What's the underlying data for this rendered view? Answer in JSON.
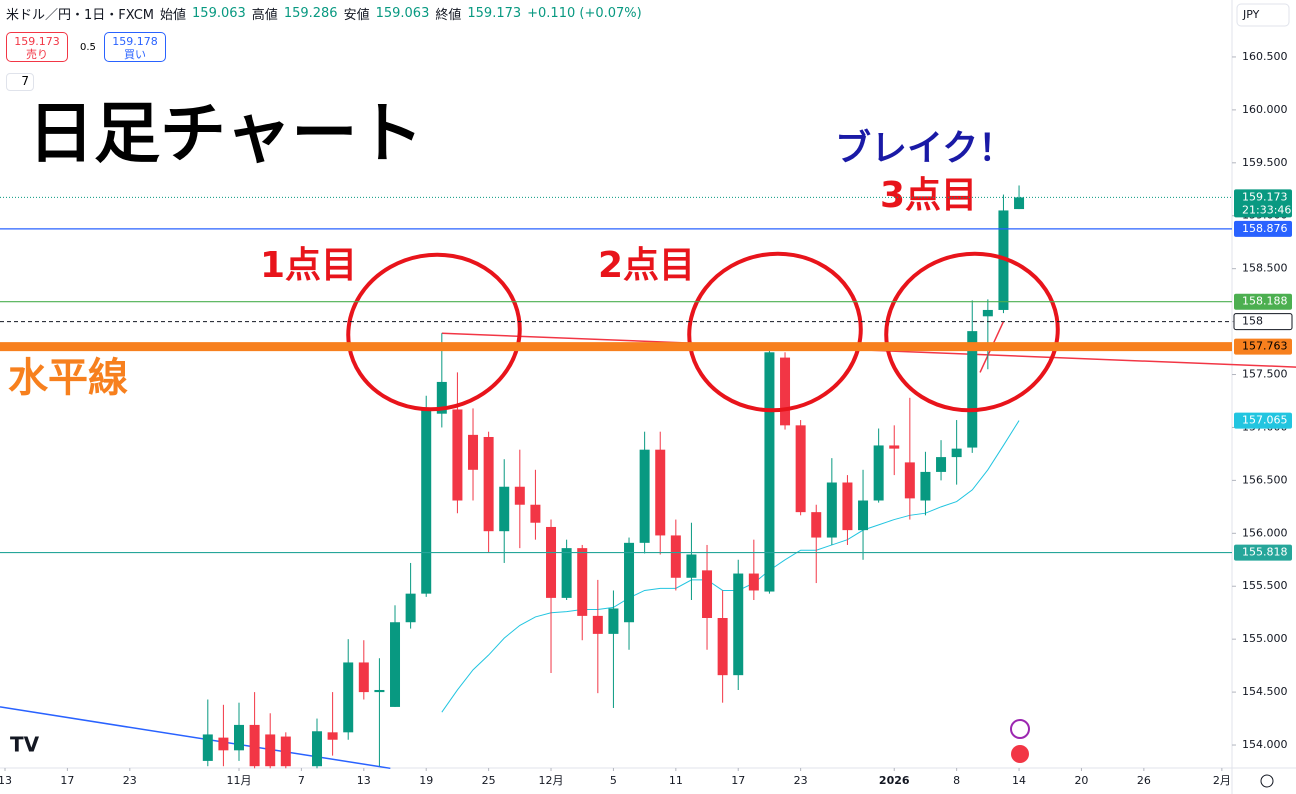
{
  "header": {
    "symbol": "米ドル／円・1日・FXCM",
    "open_label": "始値",
    "open": "159.063",
    "high_label": "高値",
    "high": "159.286",
    "low_label": "安値",
    "low": "159.063",
    "close_label": "終値",
    "close": "159.173",
    "change": "+0.110 (+0.07%)",
    "sell_price": "159.173",
    "sell_label": "売り",
    "spread": "0.5",
    "buy_price": "159.178",
    "buy_label": "買い",
    "indicator_count": "7",
    "currency": "JPY"
  },
  "chart_data": {
    "type": "candlestick",
    "up_color": "#089981",
    "down_color": "#f23645",
    "x": [
      13,
      14,
      15,
      16,
      17,
      18,
      20,
      21,
      22,
      23,
      24,
      25,
      26,
      27,
      28,
      29,
      30,
      31,
      32,
      33,
      34,
      35,
      36,
      37,
      38,
      39,
      40,
      41,
      42,
      43,
      44,
      45,
      46,
      47,
      48,
      49,
      50,
      51,
      52,
      53,
      54,
      55,
      56,
      57,
      58,
      59,
      60,
      61,
      62,
      63,
      64,
      65
    ],
    "open": [
      153.85,
      154.07,
      153.95,
      154.19,
      154.1,
      154.08,
      153.8,
      154.12,
      154.12,
      154.78,
      154.5,
      154.36,
      155.16,
      155.43,
      157.13,
      157.17,
      156.93,
      156.91,
      156.02,
      156.44,
      156.27,
      156.06,
      155.39,
      155.86,
      155.22,
      155.05,
      155.16,
      155.91,
      156.79,
      155.98,
      155.58,
      155.65,
      155.2,
      154.66,
      155.62,
      155.45,
      157.66,
      157.02,
      156.2,
      155.96,
      156.48,
      156.03,
      156.31,
      156.83,
      156.67,
      156.31,
      156.58,
      156.72,
      156.81,
      158.05,
      158.11,
      159.063
    ],
    "high": [
      154.43,
      154.38,
      154.4,
      154.5,
      154.3,
      154.12,
      154.25,
      154.5,
      155.0,
      154.99,
      154.82,
      155.32,
      155.72,
      157.3,
      157.89,
      157.52,
      157.18,
      156.96,
      156.7,
      156.79,
      156.6,
      156.13,
      155.94,
      155.89,
      155.56,
      155.46,
      155.96,
      156.96,
      156.96,
      156.13,
      156.1,
      155.89,
      155.46,
      155.75,
      155.94,
      157.73,
      157.71,
      157.07,
      156.27,
      156.71,
      156.55,
      156.6,
      156.99,
      157.02,
      157.28,
      156.77,
      156.88,
      157.07,
      158.2,
      158.21,
      159.2,
      159.286
    ],
    "low": [
      153.8,
      153.8,
      153.85,
      153.78,
      153.78,
      153.78,
      153.78,
      153.9,
      154.05,
      154.43,
      153.8,
      154.36,
      155.1,
      155.4,
      157.0,
      156.19,
      156.31,
      155.82,
      155.72,
      155.86,
      155.94,
      154.68,
      155.37,
      154.99,
      154.49,
      154.35,
      154.9,
      155.81,
      155.8,
      155.46,
      155.37,
      154.9,
      154.4,
      154.52,
      155.37,
      155.43,
      156.98,
      156.17,
      155.53,
      155.89,
      155.89,
      155.75,
      156.29,
      156.55,
      156.13,
      156.17,
      156.5,
      156.46,
      156.76,
      157.55,
      158.08,
      159.063
    ],
    "close": [
      154.1,
      153.95,
      154.19,
      153.8,
      153.8,
      153.8,
      154.13,
      154.05,
      154.78,
      154.5,
      154.52,
      155.16,
      155.43,
      157.17,
      157.43,
      156.31,
      156.6,
      156.02,
      156.44,
      156.27,
      156.1,
      155.39,
      155.86,
      155.22,
      155.05,
      155.29,
      155.91,
      156.79,
      155.98,
      155.58,
      155.8,
      155.2,
      154.66,
      155.62,
      155.46,
      157.71,
      157.02,
      156.2,
      155.96,
      156.48,
      156.03,
      156.31,
      156.83,
      156.8,
      156.33,
      156.58,
      156.72,
      156.8,
      157.91,
      158.11,
      159.05,
      159.173
    ],
    "ma": {
      "color": "#22c5e0",
      "x": [
        28,
        29,
        30,
        31,
        32,
        33,
        34,
        35,
        36,
        37,
        38,
        39,
        40,
        41,
        42,
        43,
        44,
        45,
        46,
        47,
        48,
        49,
        50,
        51,
        52,
        53,
        54,
        55,
        56,
        57,
        58,
        59,
        60,
        61,
        62,
        63,
        64,
        65
      ],
      "values": [
        154.31,
        154.52,
        154.71,
        154.85,
        155.01,
        155.13,
        155.21,
        155.25,
        155.26,
        155.28,
        155.28,
        155.3,
        155.39,
        155.46,
        155.48,
        155.48,
        155.56,
        155.56,
        155.46,
        155.46,
        155.53,
        155.65,
        155.75,
        155.84,
        155.84,
        155.89,
        155.94,
        156.03,
        156.08,
        156.13,
        156.17,
        156.19,
        156.25,
        156.3,
        156.41,
        156.6,
        156.83,
        157.065
      ]
    },
    "trendlines": [
      {
        "color": "#2962ff",
        "x": [
          -0.32,
          24.7
        ],
        "values": [
          154.36,
          153.78
        ]
      },
      {
        "color": "#f23645",
        "x": [
          28,
          82.8
        ],
        "values": [
          157.89,
          157.57
        ]
      },
      {
        "color": "#f23645",
        "x": [
          62.5,
          64
        ],
        "values": [
          157.52,
          158.0
        ]
      }
    ],
    "levels": [
      {
        "value": 159.173,
        "color": "#089981",
        "style": "dotted",
        "sub": "21:33:46"
      },
      {
        "value": 158.876,
        "color": "#2962ff",
        "style": "solid"
      },
      {
        "value": 158.188,
        "color": "#4caf50",
        "style": "solid"
      },
      {
        "value": 158.0,
        "color": "#131722",
        "style": "dashed"
      },
      {
        "value": 157.763,
        "color": "#f7801e",
        "style": "thick"
      },
      {
        "value": 157.065,
        "color": "#22c5e0",
        "style": "none"
      },
      {
        "value": 155.818,
        "color": "#26a69a",
        "style": "solid"
      }
    ],
    "xlim": [
      -0.32,
      78.65
    ],
    "ylim": [
      153.783,
      161.038
    ],
    "xticks": [
      {
        "value": 0,
        "label": "13"
      },
      {
        "value": 4,
        "label": "17"
      },
      {
        "value": 8,
        "label": "23"
      },
      {
        "value": 15,
        "label": "11月"
      },
      {
        "value": 19,
        "label": "7"
      },
      {
        "value": 23,
        "label": "13"
      },
      {
        "value": 27,
        "label": "19"
      },
      {
        "value": 31,
        "label": "25"
      },
      {
        "value": 35,
        "label": "12月"
      },
      {
        "value": 39,
        "label": "5"
      },
      {
        "value": 43,
        "label": "11"
      },
      {
        "value": 47,
        "label": "17"
      },
      {
        "value": 51,
        "label": "23"
      },
      {
        "value": 57,
        "label": "2026"
      },
      {
        "value": 61,
        "label": "8"
      },
      {
        "value": 65,
        "label": "14"
      },
      {
        "value": 69,
        "label": "20"
      },
      {
        "value": 73,
        "label": "26"
      },
      {
        "value": 78,
        "label": "2月"
      }
    ],
    "yticks": [
      {
        "value": 154,
        "label": "154.000"
      },
      {
        "value": 154.5,
        "label": "154.500"
      },
      {
        "value": 155,
        "label": "155.000"
      },
      {
        "value": 155.5,
        "label": "155.500"
      },
      {
        "value": 156,
        "label": "156.000"
      },
      {
        "value": 156.5,
        "label": "156.500"
      },
      {
        "value": 157,
        "label": "157.000"
      },
      {
        "value": 157.5,
        "label": "157.500"
      },
      {
        "value": 158,
        "label": "158.000"
      },
      {
        "value": 158.5,
        "label": "158.500"
      },
      {
        "value": 159,
        "label": "159.000"
      },
      {
        "value": 159.5,
        "label": "159.500"
      },
      {
        "value": 160,
        "label": "160.000"
      },
      {
        "value": 160.5,
        "label": "160.500"
      }
    ],
    "annotations": [
      "日足チャート",
      "水平線",
      "1点目",
      "2点目",
      "3点目",
      "ブレイク！"
    ]
  }
}
